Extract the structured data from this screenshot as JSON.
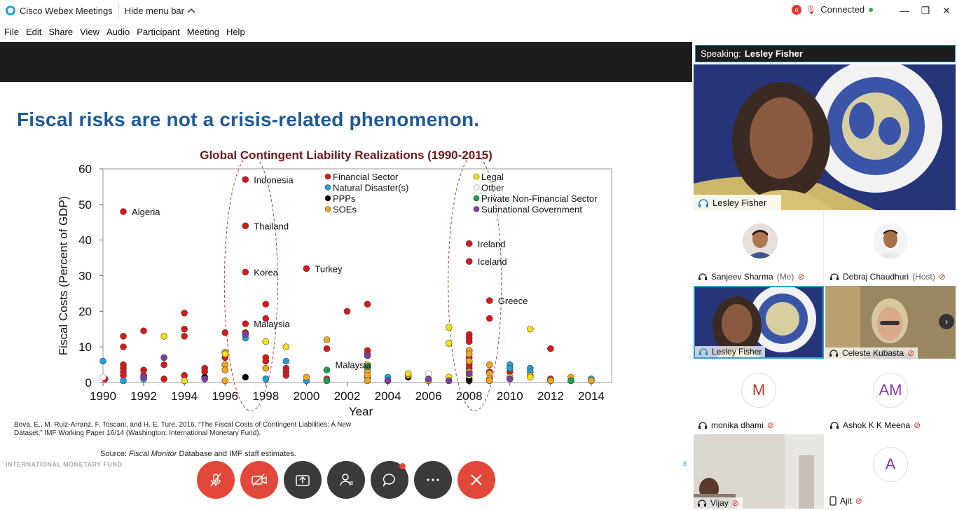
{
  "app": {
    "title": "Cisco Webex Meetings",
    "hide_menu_label": "Hide menu bar",
    "connection_status": "Connected"
  },
  "menu": [
    "File",
    "Edit",
    "Share",
    "View",
    "Audio",
    "Participant",
    "Meeting",
    "Help"
  ],
  "slide": {
    "title": "Fiscal risks are not a crisis-related phenomenon.",
    "citation": "Bova, E., M. Ruiz-Arranz, F. Toscani, and H. E. Ture, 2016, “The Fiscal Costs of Contingent Liabilities: A New Dataset,” IMF Working Paper 16/14 (Washington: International Monetary Fund).",
    "source_prefix": "Source: ",
    "source_italic": "Fiscal Monitor",
    "source_rest": " Database and IMF staff estimates.",
    "footer": "INTERNATIONAL MONETARY FUND",
    "page_number": "8"
  },
  "chart_data": {
    "type": "scatter",
    "title": "Global Contingent Liability Realizations (1990-2015)",
    "xlabel": "Year",
    "ylabel": "Fiscal Costs (Percent of GDP)",
    "xlim": [
      1990,
      2015
    ],
    "ylim": [
      0,
      60
    ],
    "xticks": [
      1990,
      1992,
      1994,
      1996,
      1998,
      2000,
      2002,
      2004,
      2006,
      2008,
      2010,
      2012,
      2014
    ],
    "yticks": [
      0,
      10,
      20,
      30,
      40,
      50,
      60
    ],
    "legend_position": "top-right",
    "series": [
      {
        "name": "Financial Sector",
        "color": "#d7191c",
        "points": [
          [
            1990.1,
            1
          ],
          [
            1991,
            48
          ],
          [
            1991,
            13
          ],
          [
            1991,
            10
          ],
          [
            1991,
            5
          ],
          [
            1991,
            4
          ],
          [
            1991,
            3
          ],
          [
            1991,
            2
          ],
          [
            1992,
            14.5
          ],
          [
            1992,
            3.5
          ],
          [
            1992,
            2
          ],
          [
            1993,
            5
          ],
          [
            1993,
            1
          ],
          [
            1994,
            19.5
          ],
          [
            1994,
            15
          ],
          [
            1994,
            13
          ],
          [
            1994,
            2
          ],
          [
            1995,
            4
          ],
          [
            1995,
            3
          ],
          [
            1996,
            14
          ],
          [
            1996,
            7
          ],
          [
            1996,
            5
          ],
          [
            1997,
            57
          ],
          [
            1997,
            44
          ],
          [
            1997,
            31
          ],
          [
            1997,
            16.5
          ],
          [
            1997,
            14
          ],
          [
            1998,
            22
          ],
          [
            1998,
            18
          ],
          [
            1998,
            7
          ],
          [
            1998,
            6
          ],
          [
            1999,
            4
          ],
          [
            1999,
            3
          ],
          [
            1999,
            2
          ],
          [
            2000,
            32
          ],
          [
            2001,
            9.5
          ],
          [
            2001,
            1
          ],
          [
            2002,
            20
          ],
          [
            2003,
            22
          ],
          [
            2003,
            9
          ],
          [
            2003,
            8
          ],
          [
            2008,
            39
          ],
          [
            2008,
            34
          ],
          [
            2008,
            13.5
          ],
          [
            2008,
            12.5
          ],
          [
            2008,
            11.5
          ],
          [
            2008,
            9
          ],
          [
            2008,
            7
          ],
          [
            2008,
            6
          ],
          [
            2008,
            5
          ],
          [
            2008,
            4
          ],
          [
            2008,
            3
          ],
          [
            2008,
            2
          ],
          [
            2009,
            23
          ],
          [
            2009,
            18
          ],
          [
            2009,
            3
          ],
          [
            2010,
            3
          ],
          [
            2012,
            9.5
          ],
          [
            2012,
            1
          ]
        ]
      },
      {
        "name": "Natural Disaster(s)",
        "color": "#1ea0d8",
        "points": [
          [
            1990,
            6
          ],
          [
            1991,
            0.5
          ],
          [
            1992,
            1
          ],
          [
            1997,
            12.5
          ],
          [
            1998,
            1
          ],
          [
            1999,
            6
          ],
          [
            2000,
            0.5
          ],
          [
            2003,
            1.5
          ],
          [
            2004,
            1.5
          ],
          [
            2008,
            1
          ],
          [
            2010,
            5
          ],
          [
            2010,
            4
          ],
          [
            2011,
            4
          ],
          [
            2011,
            3
          ],
          [
            2012,
            0.5
          ],
          [
            2014,
            1
          ]
        ]
      },
      {
        "name": "PPPs",
        "color": "#000000",
        "points": [
          [
            1995,
            1.5
          ],
          [
            1997,
            1.5
          ],
          [
            2005,
            1.5
          ],
          [
            2008,
            0.5
          ],
          [
            2008,
            1
          ]
        ]
      },
      {
        "name": "SOEs",
        "color": "#f0a81c",
        "points": [
          [
            1996,
            8.5
          ],
          [
            1996,
            5
          ],
          [
            1996,
            3.5
          ],
          [
            1996,
            0.5
          ],
          [
            1998,
            4
          ],
          [
            2000,
            1.5
          ],
          [
            2001,
            12
          ],
          [
            2003,
            4
          ],
          [
            2003,
            3
          ],
          [
            2003,
            2
          ],
          [
            2003,
            0.5
          ],
          [
            2004,
            0.5
          ],
          [
            2005,
            2
          ],
          [
            2006,
            0.5
          ],
          [
            2008,
            9
          ],
          [
            2008,
            8
          ],
          [
            2008,
            6
          ],
          [
            2008,
            3
          ],
          [
            2009,
            5
          ],
          [
            2009,
            2.5
          ],
          [
            2009,
            1
          ],
          [
            2009,
            0.5
          ],
          [
            2011,
            2
          ],
          [
            2012,
            0.5
          ],
          [
            2013,
            1.5
          ],
          [
            2014,
            0.5
          ]
        ]
      },
      {
        "name": "Legal",
        "color": "#f5e10e",
        "points": [
          [
            1993,
            13
          ],
          [
            1994,
            0.5
          ],
          [
            1996,
            8
          ],
          [
            1998,
            11.5
          ],
          [
            1999,
            10
          ],
          [
            2003,
            5
          ],
          [
            2005,
            2.5
          ],
          [
            2007,
            15.5
          ],
          [
            2007,
            11
          ],
          [
            2007,
            1.5
          ],
          [
            2008,
            2
          ],
          [
            2010,
            1.5
          ],
          [
            2011,
            15
          ],
          [
            2011,
            1.5
          ],
          [
            2013,
            0.5
          ]
        ]
      },
      {
        "name": "Other",
        "color": "#ffffff",
        "points": [
          [
            1990,
            1.5
          ],
          [
            2006,
            2.5
          ]
        ]
      },
      {
        "name": "Private Non-Financial Sector",
        "color": "#1aa050",
        "points": [
          [
            2001,
            3.5
          ],
          [
            2001,
            0.5
          ],
          [
            2003,
            4.5
          ],
          [
            2010,
            1
          ],
          [
            2013,
            0.5
          ]
        ]
      },
      {
        "name": "Subnational Government",
        "color": "#7b3ea1",
        "points": [
          [
            1992,
            1.5
          ],
          [
            1993,
            7
          ],
          [
            1995,
            1
          ],
          [
            1997,
            13.5
          ],
          [
            2003,
            7.5
          ],
          [
            2004,
            0.5
          ],
          [
            2006,
            1
          ],
          [
            2007,
            0.5
          ],
          [
            2008,
            2.5
          ],
          [
            2010,
            1
          ]
        ]
      }
    ],
    "annotations": [
      {
        "label": "Algeria",
        "x": 1991,
        "y": 48
      },
      {
        "label": "Indonesia",
        "x": 1997,
        "y": 57
      },
      {
        "label": "Thailand",
        "x": 1997,
        "y": 44
      },
      {
        "label": "Korea",
        "x": 1997,
        "y": 31
      },
      {
        "label": "Malaysia",
        "x": 1997,
        "y": 16.5
      },
      {
        "label": "Turkey",
        "x": 2000,
        "y": 32
      },
      {
        "label": "Malaysia",
        "x": 2001,
        "y": 5
      },
      {
        "label": "Ireland",
        "x": 2008,
        "y": 39
      },
      {
        "label": "Iceland",
        "x": 2008,
        "y": 34
      },
      {
        "label": "Greece",
        "x": 2009,
        "y": 23
      }
    ],
    "highlight_periods": [
      1997,
      2008
    ]
  },
  "controls": [
    {
      "name": "mute-button",
      "icon": "microphone-muted-icon"
    },
    {
      "name": "video-button",
      "icon": "video-camera-off-icon"
    },
    {
      "name": "share-button",
      "icon": "share-upload-icon"
    },
    {
      "name": "participants-button",
      "icon": "participants-icon"
    },
    {
      "name": "chat-button",
      "icon": "chat-bubble-icon"
    },
    {
      "name": "more-button",
      "icon": "more-dots-icon"
    },
    {
      "name": "leave-button",
      "icon": "close-x-icon"
    }
  ],
  "panel": {
    "speaking_prefix": "Speaking:",
    "speaking_name": "Lesley Fisher",
    "main_video_name": "Lesley Fisher",
    "participants": [
      {
        "name": "Sanjeev Sharma",
        "suffix": "(Me)",
        "type": "photo"
      },
      {
        "name": "Debraj Chaudhuri",
        "suffix": "(Host)",
        "type": "photo"
      },
      {
        "name": "Lesley Fisher",
        "suffix": "",
        "type": "video"
      },
      {
        "name": "Celeste Kubasta",
        "suffix": "",
        "type": "video"
      },
      {
        "name": "monika dhami",
        "suffix": "",
        "type": "initials",
        "initials": "M"
      },
      {
        "name": "Ashok K K Meena",
        "suffix": "",
        "type": "initials",
        "initials": "AM"
      },
      {
        "name": "Vijay",
        "suffix": "",
        "type": "video"
      },
      {
        "name": "Ajit",
        "suffix": "",
        "type": "initials",
        "initials": "A"
      }
    ]
  }
}
